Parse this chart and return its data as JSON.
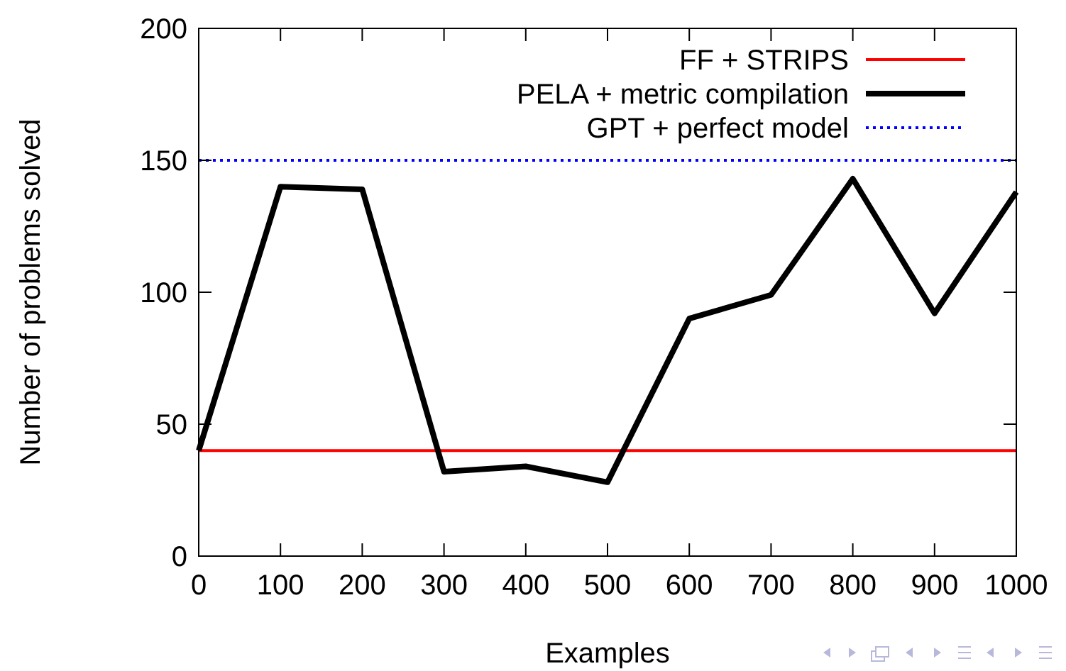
{
  "chart_data": {
    "type": "line",
    "xlabel": "Examples",
    "ylabel": "Number of problems solved",
    "x": [
      0,
      100,
      200,
      300,
      400,
      500,
      600,
      700,
      800,
      900,
      1000
    ],
    "series": [
      {
        "name": "FF + STRIPS",
        "color": "#ff0000",
        "line_style": "solid",
        "values": [
          40,
          40,
          40,
          40,
          40,
          40,
          40,
          40,
          40,
          40,
          40
        ]
      },
      {
        "name": "PELA + metric compilation",
        "color": "#000000",
        "line_style": "solid",
        "values": [
          40,
          140,
          139,
          32,
          34,
          28,
          90,
          99,
          143,
          92,
          138
        ]
      },
      {
        "name": "GPT + perfect model",
        "color": "#0000ff",
        "line_style": "dotted",
        "values": [
          150,
          150,
          150,
          150,
          150,
          150,
          150,
          150,
          150,
          150,
          150
        ]
      }
    ],
    "xlim": [
      0,
      1000
    ],
    "xticks": [
      0,
      100,
      200,
      300,
      400,
      500,
      600,
      700,
      800,
      900,
      1000
    ],
    "ylim": [
      0,
      200
    ],
    "yticks": [
      0,
      50,
      100,
      150,
      200
    ],
    "legend": "top right",
    "grid": false,
    "marker": "none"
  }
}
